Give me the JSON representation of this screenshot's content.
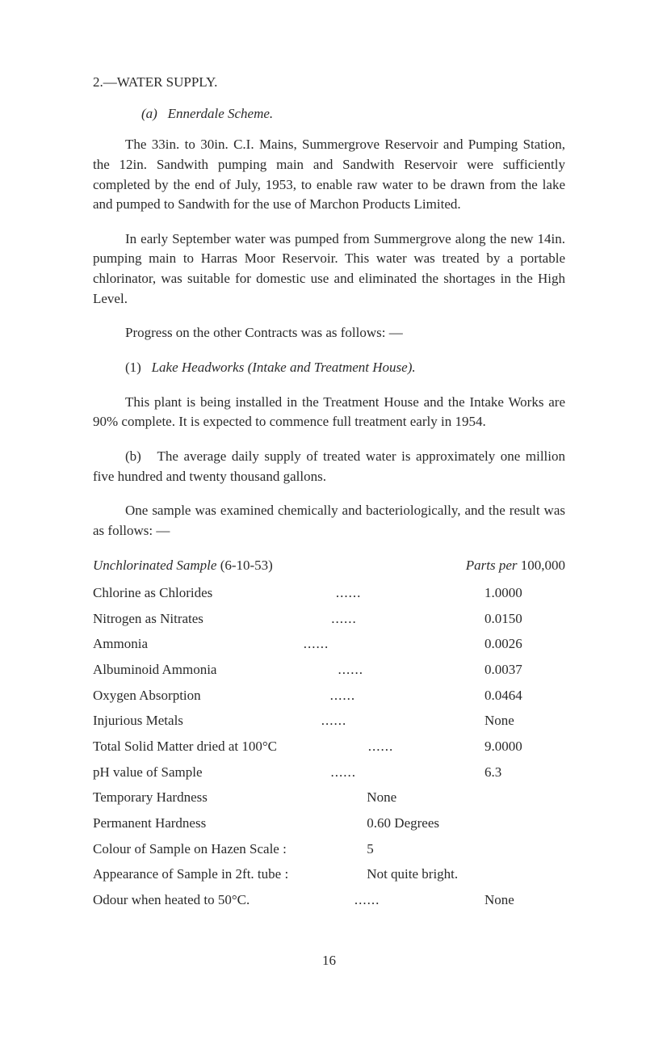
{
  "section": {
    "number": "2.—WATER SUPPLY.",
    "subheading_prefix": "(a)",
    "subheading": "Ennerdale Scheme."
  },
  "paragraphs": {
    "p1": "The 33in. to 30in. C.I. Mains, Summergrove Reservoir and Pumping Station, the 12in. Sandwith pumping main and Sandwith Reservoir were sufficiently completed by the end of July, 1953, to enable raw water to be drawn from the lake and pumped to Sandwith for the use of Marchon Products Limited.",
    "p2": "In early September water was pumped from Summer­grove along the new 14in. pumping main to Harras Moor Reservoir. This water was treated by a portable chlorinator, was suitable for domestic use and eliminated the shortages in the High Level.",
    "p3": "Progress on the other Contracts was as follows: —",
    "p4_prefix": "(1)",
    "p4_italic": "Lake Headworks",
    "p4_paren": "(Intake and Treatment House).",
    "p5": "This plant is being installed in the Treatment House and the Intake Works are 90% complete. It is expected to commence full treatment early in 1954.",
    "p6_prefix": "(b)",
    "p6": "The average daily supply of treated water is approx­imately one million five hundred and twenty thousand gallons.",
    "p7": "One sample was examined chemically and bacterio­logically, and the result was as follows: —"
  },
  "table": {
    "heading_left": "Unchlorinated Sample",
    "heading_date": "(6-10-53)",
    "heading_right": "Parts per",
    "heading_right_num": "100,000",
    "rows": [
      {
        "label": "Chlorine as Chlorides",
        "value": "1.0000"
      },
      {
        "label": "Nitrogen as Nitrates",
        "value": "0.0150"
      },
      {
        "label": "Ammonia",
        "value": "0.0026"
      },
      {
        "label": "Albuminoid Ammonia",
        "value": "0.0037"
      },
      {
        "label": "Oxygen Absorption",
        "value": "0.0464"
      },
      {
        "label": "Injurious Metals",
        "value": "None"
      },
      {
        "label": "Total Solid Matter dried at 100°C",
        "value": "9.0000"
      },
      {
        "label": "pH value of Sample",
        "value": "6.3"
      }
    ],
    "rows2": [
      {
        "label": "Temporary Hardness",
        "value": "None"
      },
      {
        "label": "Permanent Hardness",
        "value": "0.60 Degrees"
      },
      {
        "label": "Colour of Sample on Hazen Scale :",
        "value": "5"
      },
      {
        "label": "Appearance of Sample in 2ft. tube :",
        "value": "Not quite bright."
      }
    ],
    "odour_label": "Odour when heated to 50°C.",
    "odour_value": "None"
  },
  "page_number": "16"
}
